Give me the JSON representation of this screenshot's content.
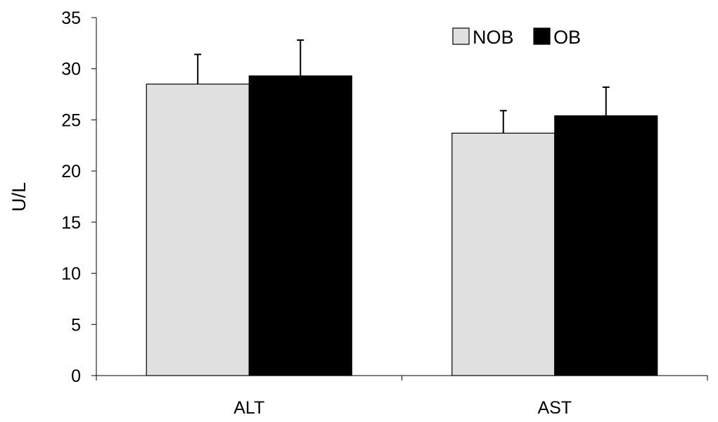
{
  "chart_data": {
    "type": "bar",
    "title": "",
    "xlabel": "",
    "ylabel": "U/L",
    "ylim": [
      0,
      35
    ],
    "yticks": [
      0,
      5,
      10,
      15,
      20,
      25,
      30,
      35
    ],
    "ytick_labels": [
      "0",
      "5",
      "10",
      "15",
      "20",
      "25",
      "30",
      "35"
    ],
    "categories": [
      "ALT",
      "AST"
    ],
    "series": [
      {
        "name": "NOB",
        "color": "#e0e0e0",
        "values": [
          28.5,
          23.7
        ],
        "error": [
          2.9,
          2.2
        ]
      },
      {
        "name": "OB",
        "color": "#000000",
        "values": [
          29.3,
          25.4
        ],
        "error": [
          3.5,
          2.8
        ]
      }
    ],
    "error_bars": "upper",
    "grid": false,
    "legend_position": "top-right"
  }
}
